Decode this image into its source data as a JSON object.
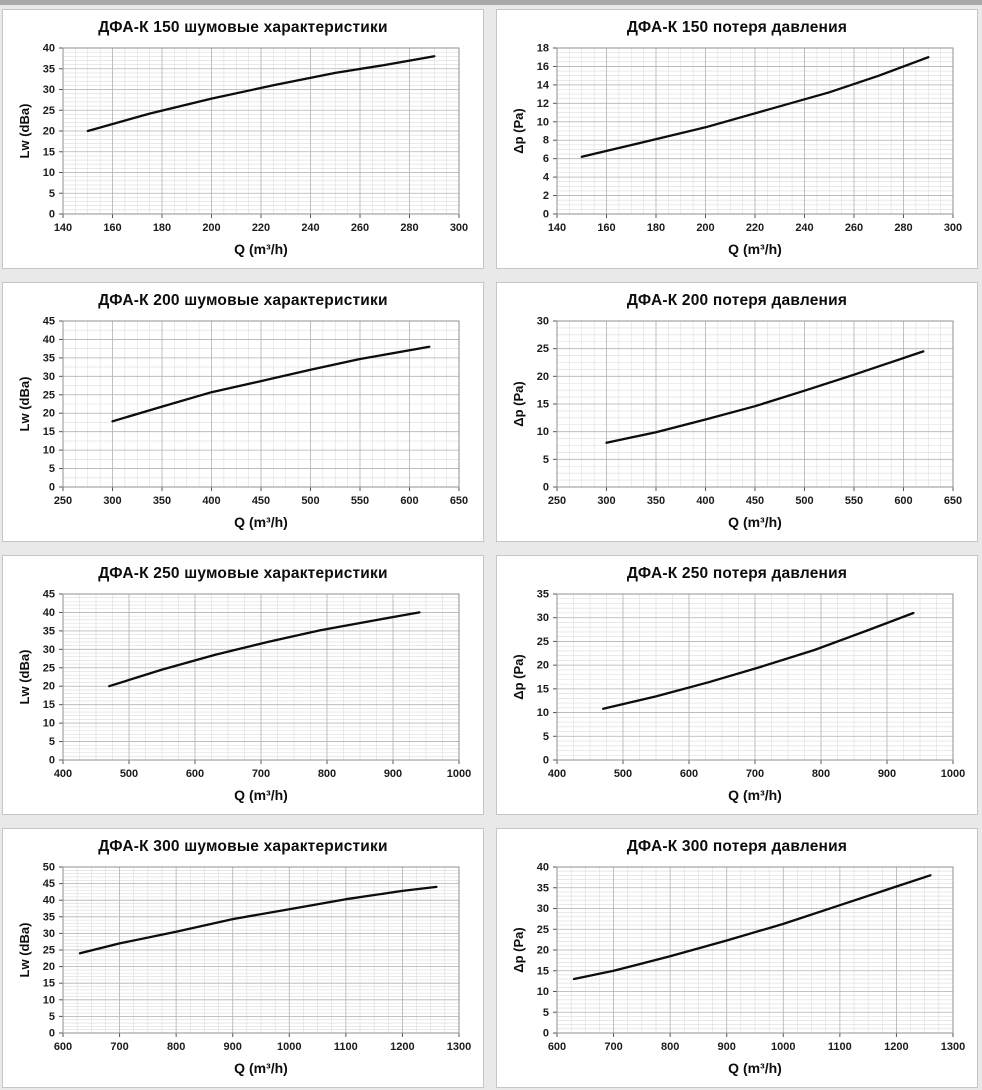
{
  "page": {
    "background": "#e9e9e9",
    "top_strip_color": "#a9a9a9",
    "panel_background": "#ffffff",
    "panel_border": "#c6c6c6"
  },
  "chart_style": {
    "line_color": "#0d0d0d",
    "grid_minor_color": "#dcdcdc",
    "grid_major_color": "#b5b5b5",
    "plot_border_color": "#909090",
    "tick_color": "#555555",
    "tick_label_color": "#1c1c1c",
    "legend": "none",
    "grid": true
  },
  "chart_data": [
    {
      "type": "line",
      "title": "ДФА-К 150 шумовые характеристики",
      "xlabel": "Q (m³/h)",
      "ylabel": "Lw (dBa)",
      "xlim": [
        140,
        300
      ],
      "xtick_step": 20,
      "xminor_step": 5,
      "ylim": [
        0,
        40
      ],
      "ytick_step": 5,
      "yminor_step": 1,
      "series": [
        {
          "name": "Lw",
          "x": [
            150,
            175,
            200,
            225,
            250,
            270,
            290
          ],
          "y": [
            20,
            24.2,
            27.8,
            31,
            34,
            35.9,
            38
          ]
        }
      ]
    },
    {
      "type": "line",
      "title": "ДФА-К 150 потеря давления",
      "xlabel": "Q (m³/h)",
      "ylabel": "Δp (Pa)",
      "xlim": [
        140,
        300
      ],
      "xtick_step": 20,
      "xminor_step": 5,
      "ylim": [
        0,
        18
      ],
      "ytick_step": 2,
      "yminor_step": 0.5,
      "series": [
        {
          "name": "Δp",
          "x": [
            150,
            175,
            200,
            225,
            250,
            270,
            290
          ],
          "y": [
            6.2,
            7.8,
            9.4,
            11.3,
            13.2,
            15,
            17
          ]
        }
      ]
    },
    {
      "type": "line",
      "title": "ДФА-К 200 шумовые характеристики",
      "xlabel": "Q (m³/h)",
      "ylabel": "Lw (dBa)",
      "xlim": [
        250,
        650
      ],
      "xtick_step": 50,
      "xminor_step": 12.5,
      "ylim": [
        0,
        45
      ],
      "ytick_step": 5,
      "yminor_step": 2.5,
      "series": [
        {
          "name": "Lw",
          "x": [
            300,
            350,
            400,
            450,
            500,
            550,
            620
          ],
          "y": [
            17.8,
            21.8,
            25.7,
            28.7,
            31.8,
            34.7,
            38
          ]
        }
      ]
    },
    {
      "type": "line",
      "title": "ДФА-К 200 потеря давления",
      "xlabel": "Q (m³/h)",
      "ylabel": "Δp (Pa)",
      "xlim": [
        250,
        650
      ],
      "xtick_step": 50,
      "xminor_step": 12.5,
      "ylim": [
        0,
        30
      ],
      "ytick_step": 5,
      "yminor_step": 1.25,
      "series": [
        {
          "name": "Δp",
          "x": [
            300,
            350,
            400,
            450,
            500,
            550,
            620
          ],
          "y": [
            8,
            9.9,
            12.2,
            14.6,
            17.4,
            20.3,
            24.5
          ]
        }
      ]
    },
    {
      "type": "line",
      "title": "ДФА-К 250 шумовые характеристики",
      "xlabel": "Q (m³/h)",
      "ylabel": "Lw (dBa)",
      "xlim": [
        400,
        1000
      ],
      "xtick_step": 100,
      "xminor_step": 25,
      "ylim": [
        0,
        45
      ],
      "ytick_step": 5,
      "yminor_step": 1,
      "series": [
        {
          "name": "Lw",
          "x": [
            470,
            550,
            630,
            710,
            790,
            870,
            940
          ],
          "y": [
            20,
            24.5,
            28.5,
            32,
            35.2,
            37.8,
            40
          ]
        }
      ]
    },
    {
      "type": "line",
      "title": "ДФА-К 250 потеря давления",
      "xlabel": "Q (m³/h)",
      "ylabel": "Δp (Pa)",
      "xlim": [
        400,
        1000
      ],
      "xtick_step": 100,
      "xminor_step": 25,
      "ylim": [
        0,
        35
      ],
      "ytick_step": 5,
      "yminor_step": 1,
      "series": [
        {
          "name": "Δp",
          "x": [
            470,
            550,
            630,
            710,
            790,
            870,
            940
          ],
          "y": [
            10.8,
            13.4,
            16.4,
            19.7,
            23.2,
            27.3,
            31
          ]
        }
      ]
    },
    {
      "type": "line",
      "title": "ДФА-К 300 шумовые характеристики",
      "xlabel": "Q (m³/h)",
      "ylabel": "Lw (dBa)",
      "xlim": [
        600,
        1300
      ],
      "xtick_step": 100,
      "xminor_step": 25,
      "ylim": [
        0,
        50
      ],
      "ytick_step": 5,
      "yminor_step": 1,
      "series": [
        {
          "name": "Lw",
          "x": [
            630,
            700,
            800,
            900,
            1000,
            1100,
            1200,
            1260
          ],
          "y": [
            24,
            27,
            30.5,
            34.3,
            37.3,
            40.3,
            42.8,
            44
          ]
        }
      ]
    },
    {
      "type": "line",
      "title": "ДФА-К 300 потеря давления",
      "xlabel": "Q (m³/h)",
      "ylabel": "Δp (Pa)",
      "xlim": [
        600,
        1300
      ],
      "xtick_step": 100,
      "xminor_step": 25,
      "ylim": [
        0,
        40
      ],
      "ytick_step": 5,
      "yminor_step": 1,
      "series": [
        {
          "name": "Δp",
          "x": [
            630,
            700,
            800,
            900,
            1000,
            1100,
            1200,
            1260
          ],
          "y": [
            13,
            15,
            18.5,
            22.3,
            26.3,
            30.8,
            35.3,
            38
          ]
        }
      ]
    }
  ]
}
